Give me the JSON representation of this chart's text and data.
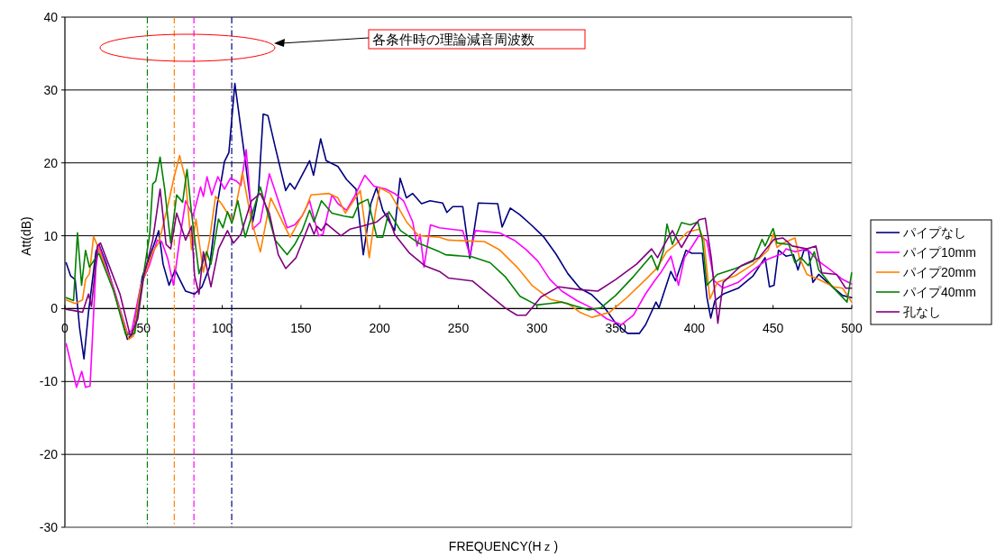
{
  "chart_data": {
    "type": "line",
    "xlabel": "FREQUENCY(Hｚ)",
    "ylabel": "Att(dB)",
    "xlim": [
      0,
      500
    ],
    "xticks": [
      0,
      50,
      100,
      150,
      200,
      250,
      300,
      350,
      400,
      450,
      500
    ],
    "ylim": [
      -30,
      40
    ],
    "yticks": [
      -30,
      -20,
      -10,
      0,
      10,
      20,
      30,
      40
    ],
    "grid": "y",
    "legend": "right",
    "line_style": "solid",
    "marker": "none",
    "annotations": [
      "各条件時の理論減音周波数"
    ],
    "ref_lines": [
      {
        "axis": "x",
        "value": 52.4,
        "color": "#008000",
        "line_style": "dashdot"
      },
      {
        "axis": "x",
        "value": 69.5,
        "color": "#ff8000",
        "line_style": "dashdot"
      },
      {
        "axis": "x",
        "value": 82,
        "color": "#ff00ff",
        "line_style": "dashdot"
      },
      {
        "axis": "x",
        "value": 106,
        "color": "#000080",
        "line_style": "dashdot"
      }
    ],
    "series": [
      {
        "name": "パイプなし",
        "color": "#000080",
        "x": [
          0.8,
          3.6,
          6.5,
          9.3,
          12.1,
          15,
          19.7,
          21.6,
          26.4,
          33,
          39.7,
          43.5,
          49.2,
          53.9,
          59.6,
          62.4,
          66.2,
          70,
          76.7,
          82.4,
          87.1,
          91.9,
          96.6,
          101.4,
          104.2,
          108,
          114.7,
          119.4,
          123,
          126,
          129,
          133.6,
          140.3,
          143,
          146,
          150.7,
          155.5,
          158,
          162.5,
          166,
          173.5,
          179,
          185,
          189.6,
          194.4,
          198,
          202,
          209.5,
          213,
          217,
          221,
          226.6,
          232,
          240,
          242.7,
          246.5,
          252.8,
          257.3,
          262.7,
          275,
          277.8,
          283,
          289,
          296.8,
          304.4,
          312,
          319.6,
          327.2,
          334.8,
          342.4,
          350,
          357.5,
          365,
          369,
          375.6,
          377.5,
          385,
          388,
          394.6,
          398.4,
          405,
          408,
          410.4,
          413,
          418.3,
          427.8,
          437.3,
          444.9,
          447.7,
          450.6,
          453.4,
          458.2,
          462.9,
          465.8,
          469.6,
          472.4,
          475.3,
          479,
          486.6,
          494.2,
          499.9
        ],
        "values": [
          6.3,
          4.5,
          4,
          -2.6,
          -6.9,
          -0.5,
          7.8,
          8.8,
          6.1,
          1.1,
          -4.2,
          -3.4,
          4.4,
          7.1,
          10.7,
          6.1,
          3.2,
          5.3,
          2.4,
          2,
          3,
          5.7,
          14,
          20.2,
          21.4,
          30.9,
          20.1,
          11.9,
          16,
          26.7,
          26.5,
          22.2,
          16.2,
          17.2,
          16.4,
          18.3,
          20.3,
          18.3,
          23.3,
          20.3,
          19.5,
          17.7,
          16.4,
          7.4,
          14.4,
          16.6,
          13.5,
          10.7,
          17.9,
          15.2,
          15.8,
          14.4,
          14.8,
          14.5,
          13.2,
          14,
          14,
          6.9,
          14.5,
          14.4,
          11.2,
          13.8,
          12.9,
          11.4,
          9.8,
          7.5,
          4.8,
          2.8,
          1.9,
          0.3,
          -2,
          -3.4,
          -3.4,
          -2.2,
          0.9,
          0.1,
          5.1,
          3.8,
          8,
          7.6,
          7.6,
          1.5,
          -1.3,
          1.1,
          2,
          2.8,
          4.5,
          7,
          3,
          3.2,
          8,
          7.2,
          7.4,
          5.3,
          8,
          8,
          3.6,
          4.7,
          3.2,
          1.8,
          1.5
        ]
      },
      {
        "name": "パイプ10mm",
        "color": "#ff00ff",
        "x": [
          0.8,
          7.4,
          10.7,
          13.1,
          16,
          19.7,
          21.6,
          31,
          39.7,
          42.5,
          48.2,
          53.9,
          58.7,
          61.5,
          65.3,
          69,
          72.9,
          76.7,
          81.4,
          86.2,
          88,
          90.3,
          93.3,
          97.2,
          101.4,
          105.2,
          109,
          111.8,
          115.2,
          119.4,
          124.2,
          129.9,
          135.6,
          141.2,
          146,
          150.7,
          155.5,
          161.2,
          164,
          169.7,
          173.5,
          179,
          184,
          190.6,
          196.3,
          203.9,
          209.5,
          215.2,
          221,
          223.8,
          225.7,
          228.2,
          232.3,
          238,
          252.8,
          257.3,
          260.8,
          276,
          285.4,
          293,
          300.6,
          308.2,
          315.8,
          325.3,
          334.8,
          344.3,
          353.7,
          361.3,
          368.9,
          374.6,
          378.5,
          385.1,
          389.9,
          393.7,
          399.3,
          403.1,
          407.9,
          412.6,
          418.3,
          427.8,
          437.3,
          446.8,
          456.3,
          458.2,
          463.9,
          471.5,
          479,
          486.6,
          494.2,
          499.9
        ],
        "values": [
          -4.8,
          -10.8,
          -8.6,
          -10.8,
          -10.6,
          5.7,
          8.6,
          2.8,
          -3.4,
          -3,
          3.2,
          6.1,
          9.4,
          9.2,
          6.9,
          3.2,
          9.4,
          14.8,
          12.7,
          16.7,
          15.4,
          18.1,
          15.6,
          18.1,
          16.4,
          17.9,
          17.5,
          16.9,
          21.8,
          10.9,
          11.9,
          18.5,
          14.8,
          11.1,
          11.5,
          12.7,
          14.8,
          10,
          10.2,
          15.6,
          14.4,
          13.5,
          15.4,
          18.3,
          16.8,
          16.4,
          15.8,
          14.8,
          11.9,
          8.6,
          10.2,
          5.7,
          11.5,
          11.1,
          10.7,
          7.3,
          10.7,
          10.4,
          9.4,
          8.1,
          6.5,
          4,
          2.4,
          1.1,
          0.1,
          -1.4,
          -2.2,
          -0.9,
          2,
          3.8,
          4.9,
          7.2,
          3.2,
          7,
          8.8,
          10.1,
          9.3,
          3.8,
          2.8,
          3.6,
          5.3,
          6.8,
          7.6,
          8.2,
          7.8,
          8.2,
          6.5,
          5.3,
          4,
          3.4
        ]
      },
      {
        "name": "パイプ20mm",
        "color": "#ff8000",
        "x": [
          0.8,
          6.5,
          11.2,
          13.1,
          15.6,
          18.2,
          21.6,
          31,
          40.6,
          43.5,
          48.2,
          55.8,
          59.6,
          65.3,
          69,
          72.9,
          76.7,
          80.5,
          83.3,
          88,
          91.9,
          95.7,
          99.5,
          103.3,
          107.1,
          112.8,
          118.5,
          124.2,
          130.8,
          143.1,
          152.6,
          156.4,
          167.8,
          173.5,
          178.2,
          187.7,
          193.4,
          197.2,
          200.1,
          206.7,
          217.1,
          224.7,
          238,
          243.7,
          266.5,
          276,
          287.3,
          296.8,
          308.2,
          319.6,
          327.2,
          334.8,
          346.2,
          357.5,
          369,
          374.6,
          376.6,
          382.3,
          388,
          395.5,
          403.1,
          406,
          409.8,
          414.5,
          425.9,
          437.3,
          446.8,
          450.2,
          452.5,
          456.3,
          463.9,
          466.7,
          471.5,
          479,
          488.5,
          494.2,
          499.9
        ],
        "values": [
          1.2,
          0.7,
          1.2,
          4,
          4.8,
          9.9,
          8.2,
          2.4,
          -4.2,
          -3.8,
          3,
          7.8,
          9,
          14,
          17.7,
          21,
          17.7,
          8.1,
          12.3,
          5,
          9.4,
          15.4,
          14.4,
          13.1,
          12.3,
          18.7,
          12.1,
          7.8,
          15.2,
          9.8,
          13.5,
          15.6,
          15.8,
          15.2,
          13.1,
          16.2,
          7,
          13.1,
          16.6,
          15.8,
          11.9,
          10,
          9.8,
          9.4,
          9.2,
          8.1,
          5.7,
          3.2,
          1.3,
          0.7,
          -0.5,
          -1.2,
          -0.5,
          1.6,
          4,
          5.2,
          5.7,
          7.8,
          8.8,
          10.5,
          10.9,
          9.5,
          1.3,
          3.6,
          4.5,
          6.1,
          8,
          10.3,
          8.4,
          9,
          9.7,
          7,
          4.7,
          4,
          3,
          2.8,
          0.9
        ]
      },
      {
        "name": "パイプ40mm",
        "color": "#008000",
        "x": [
          0.8,
          5.5,
          8,
          10.6,
          13.1,
          15.6,
          21.6,
          31,
          38.7,
          44.4,
          49.2,
          53.9,
          55.8,
          57.7,
          60.5,
          63.4,
          67.2,
          71,
          74.8,
          77.6,
          80.5,
          85.2,
          90,
          92.8,
          97.6,
          100.4,
          103.3,
          106.1,
          109.9,
          114.6,
          124.2,
          133.6,
          141.2,
          146,
          150.7,
          155.5,
          158.3,
          163,
          169.7,
          177.3,
          183,
          186.8,
          192.5,
          198.2,
          202,
          205.8,
          213.3,
          224.7,
          238,
          241.8,
          258.9,
          270.2,
          279.7,
          289.2,
          299.7,
          308.2,
          315.8,
          325.3,
          332.9,
          340.5,
          349.9,
          361.3,
          372.7,
          376.6,
          380.4,
          382.6,
          386,
          391.8,
          397.4,
          402.2,
          405,
          407.9,
          414.5,
          425.9,
          437.3,
          443,
          444.9,
          450,
          452.5,
          460,
          463.9,
          467.7,
          472.4,
          476.2,
          479,
          488.5,
          497,
          499.9
        ],
        "values": [
          1.5,
          1.1,
          10.4,
          3.2,
          8,
          5.7,
          7.6,
          2.4,
          -3.6,
          -3.4,
          3.6,
          10.2,
          17.1,
          17.5,
          20.8,
          16.4,
          9,
          15.6,
          14.6,
          19.1,
          13.1,
          4.8,
          7.8,
          6.1,
          12.3,
          11.1,
          13.3,
          11.7,
          14.8,
          9.8,
          16.7,
          9.4,
          7.4,
          8.8,
          10.7,
          13.5,
          11.9,
          14.8,
          13.1,
          12.7,
          12.5,
          14.4,
          15,
          9.8,
          9.8,
          13.3,
          10.7,
          9,
          7.8,
          7.4,
          7.1,
          6.3,
          4.4,
          1.7,
          0.5,
          0.7,
          0.9,
          0.3,
          -0.2,
          0.1,
          1.8,
          4.4,
          7.3,
          5.3,
          8,
          11.6,
          8.8,
          11.8,
          11.5,
          11.9,
          9.5,
          3.2,
          4.7,
          5.5,
          6.5,
          9.5,
          8.6,
          11,
          9,
          8.8,
          6.3,
          7,
          5.9,
          7.8,
          5.3,
          2.8,
          0.9,
          4.9
        ]
      },
      {
        "name": "孔なし",
        "color": "#800080",
        "x": [
          0.8,
          6.5,
          11.2,
          15,
          16.9,
          20.7,
          22.6,
          35,
          41.6,
          46.3,
          50.1,
          55.8,
          60.5,
          64.3,
          67.2,
          71,
          76.7,
          80.5,
          82.4,
          85.2,
          88,
          92.8,
          97.6,
          103.3,
          107.1,
          111.8,
          118.5,
          124.2,
          129.9,
          135.6,
          140.3,
          146.9,
          155.5,
          158.3,
          160.2,
          163,
          165.9,
          175.4,
          181.1,
          188.7,
          198.2,
          204.8,
          209.5,
          219,
          228.5,
          238,
          243.7,
          258.9,
          268.4,
          279.7,
          287.3,
          293,
          302.5,
          313.9,
          327.2,
          338.6,
          350,
          363.2,
          372.8,
          376.6,
          380.4,
          386,
          391.8,
          398.4,
          403.1,
          406.9,
          410.7,
          414.9,
          418.3,
          429.7,
          441.1,
          450.6,
          456.3,
          462,
          471.5,
          477.2,
          481,
          490.4,
          496.1,
          499.9
        ],
        "values": [
          -0.1,
          -0.3,
          -0.5,
          2,
          0.3,
          8.6,
          9,
          2,
          -3.8,
          -1.4,
          4.4,
          9.4,
          16.4,
          8.8,
          8.2,
          13.1,
          9.4,
          11.3,
          4.5,
          2,
          7.8,
          3,
          8.2,
          10.7,
          9,
          10.2,
          14.8,
          15.8,
          13.1,
          7.4,
          5.5,
          7,
          11.7,
          10.2,
          11.3,
          10.7,
          11.7,
          10,
          10.9,
          11.3,
          11.9,
          13.1,
          10.2,
          7.6,
          5.9,
          5.1,
          4.2,
          3.8,
          2.1,
          0.1,
          -0.9,
          -0.9,
          1.6,
          3,
          2.6,
          2.4,
          4,
          6.1,
          8.2,
          7,
          8.6,
          10.7,
          8.4,
          10.9,
          12.2,
          12.4,
          7,
          -2,
          3.6,
          5.9,
          7,
          9.5,
          9.7,
          8.6,
          8.2,
          8.6,
          4.9,
          4.7,
          2.8,
          2.8
        ]
      }
    ]
  }
}
